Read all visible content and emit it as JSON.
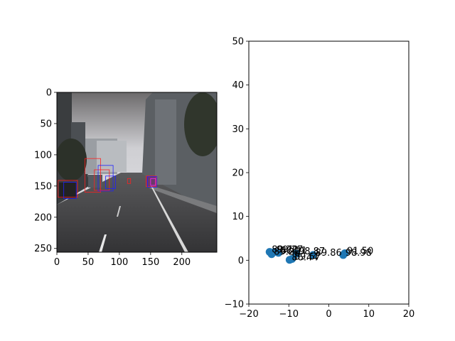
{
  "chart_data": [
    {
      "type": "image",
      "xlim": [
        0,
        256
      ],
      "ylim": [
        256,
        0
      ],
      "xticks": [
        0,
        50,
        100,
        150,
        200
      ],
      "yticks": [
        0,
        50,
        100,
        150,
        200,
        250
      ],
      "boxes": [
        {
          "x1": 2,
          "y1": 141,
          "x2": 33,
          "y2": 168,
          "color": "#ff2020"
        },
        {
          "x1": 11,
          "y1": 144,
          "x2": 31,
          "y2": 170,
          "color": "#2020ff"
        },
        {
          "x1": 45,
          "y1": 106,
          "x2": 70,
          "y2": 160,
          "color": "#ff2020"
        },
        {
          "x1": 60,
          "y1": 124,
          "x2": 84,
          "y2": 157,
          "color": "#ff2020"
        },
        {
          "x1": 66,
          "y1": 117,
          "x2": 90,
          "y2": 158,
          "color": "#2020ff"
        },
        {
          "x1": 78,
          "y1": 134,
          "x2": 94,
          "y2": 154,
          "color": "#2020ff"
        },
        {
          "x1": 113,
          "y1": 138,
          "x2": 118,
          "y2": 146,
          "color": "#ff2020"
        },
        {
          "x1": 143,
          "y1": 134,
          "x2": 159,
          "y2": 151,
          "color": "#ff2020"
        },
        {
          "x1": 145,
          "y1": 135,
          "x2": 160,
          "y2": 152,
          "color": "#2020ff"
        },
        {
          "x1": 150,
          "y1": 138,
          "x2": 158,
          "y2": 149,
          "color": "#ff20ff"
        }
      ]
    },
    {
      "type": "scatter",
      "xlim": [
        -20,
        20
      ],
      "ylim": [
        -10,
        50
      ],
      "xticks": [
        -20,
        -10,
        0,
        10,
        20
      ],
      "yticks": [
        -10,
        0,
        10,
        20,
        30,
        40,
        50
      ],
      "marker_color": "#1f77b4",
      "points": [
        {
          "x": -14.8,
          "y": 1.9,
          "label": "89.70"
        },
        {
          "x": -14.3,
          "y": 1.4,
          "label": "89.20"
        },
        {
          "x": -13.6,
          "y": 1.9,
          "label": "99.27"
        },
        {
          "x": -12.6,
          "y": 1.7,
          "label": "88.21"
        },
        {
          "x": -9.8,
          "y": 0.1,
          "label": "86.44"
        },
        {
          "x": -9.2,
          "y": 0.3,
          "label": "89.67"
        },
        {
          "x": -8.1,
          "y": 1.5,
          "label": "98.87"
        },
        {
          "x": -3.9,
          "y": 1.2,
          "label": "89.86"
        },
        {
          "x": 3.6,
          "y": 1.2,
          "label": "98.98"
        },
        {
          "x": 4.0,
          "y": 1.6,
          "label": "91.50"
        }
      ],
      "visible_point_labels": [
        "89.70",
        "89.20",
        "99.27",
        "88.21",
        "86.44",
        "89.67",
        "98.87",
        "89.86",
        "98.98",
        "91.50"
      ]
    }
  ]
}
